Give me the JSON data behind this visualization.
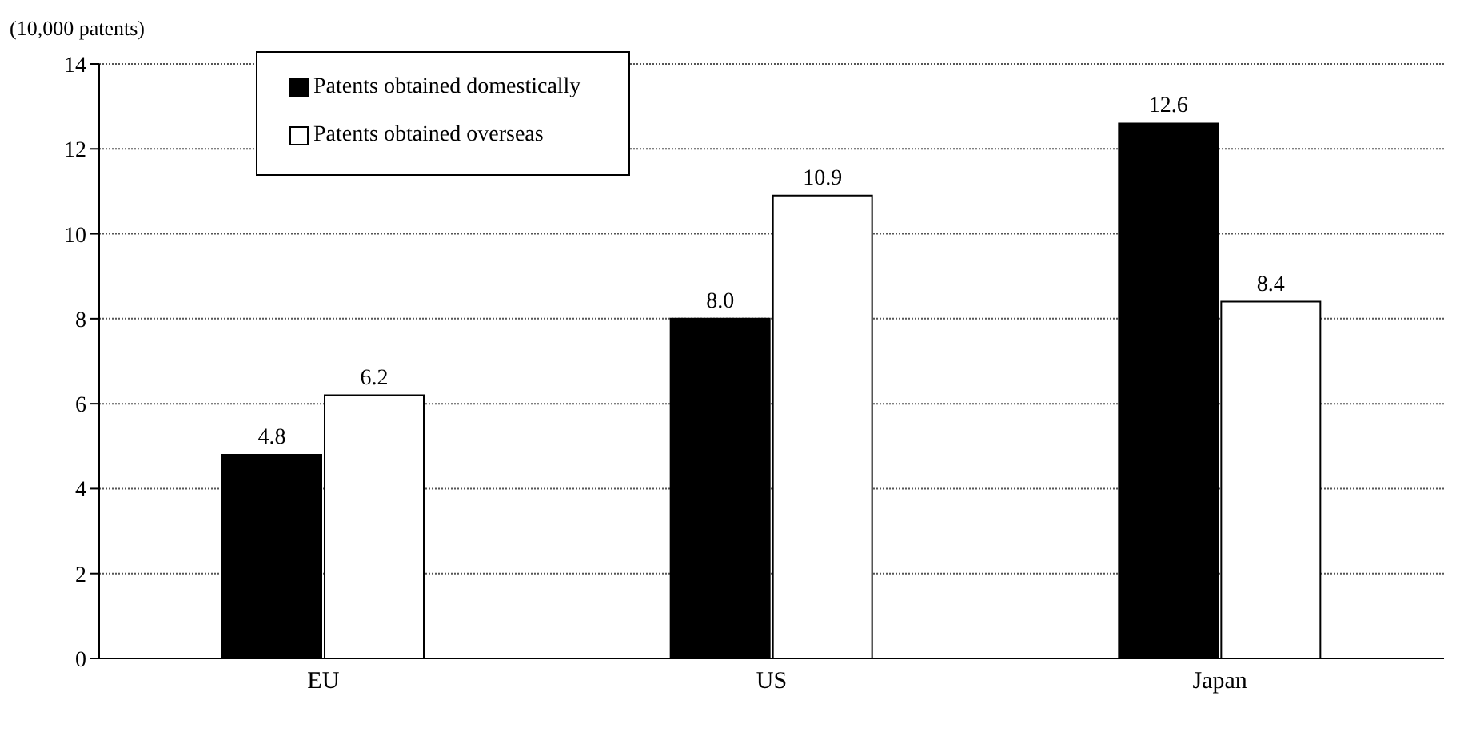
{
  "chart_data": {
    "type": "bar",
    "ylabel": "(10,000 patents)",
    "categories": [
      "EU",
      "US",
      "Japan"
    ],
    "series": [
      {
        "name": "Patents obtained domestically",
        "color": "#000000",
        "values": [
          4.8,
          8.0,
          12.6
        ],
        "value_labels": [
          "4.8",
          "8.0",
          "12.6"
        ]
      },
      {
        "name": "Patents obtained overseas",
        "color": "#ffffff",
        "values": [
          6.2,
          10.9,
          8.4
        ],
        "value_labels": [
          "6.2",
          "10.9",
          "8.4"
        ]
      }
    ],
    "ylim": [
      0,
      14
    ],
    "yticks": [
      0,
      2,
      4,
      6,
      8,
      10,
      12,
      14
    ],
    "grid": "y",
    "legend": "top left"
  }
}
